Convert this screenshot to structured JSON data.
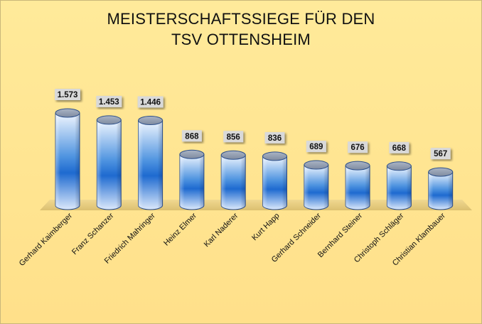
{
  "chart_data": {
    "type": "bar",
    "title_lines": [
      "MEISTERSCHAFTSSIEGE FÜR DEN",
      "TSV OTTENSHEIM"
    ],
    "categories": [
      "Gerhard Kaimberger",
      "Franz Schanzer",
      "Friedrich Mahringer",
      "Heinz Elmer",
      "Karl Naderer",
      "Kurt Happ",
      "Gerhard Schneider",
      "Bernhard Steiner",
      "Christoph Schläger",
      "Christian Klambauer"
    ],
    "values": [
      1573,
      1453,
      1446,
      868,
      856,
      836,
      689,
      676,
      668,
      567
    ],
    "data_labels": [
      "1.573",
      "1.453",
      "1.446",
      "868",
      "856",
      "836",
      "689",
      "676",
      "668",
      "567"
    ],
    "xlabel": "",
    "ylabel": "",
    "grid": false,
    "legend": "none",
    "colors": {
      "background": "#ffe38f",
      "bar_dark": "#1e6ad0",
      "bar_light": "#f2f7ff",
      "floor": "#e8cf7c",
      "label_box": "#d9d9d9"
    }
  }
}
